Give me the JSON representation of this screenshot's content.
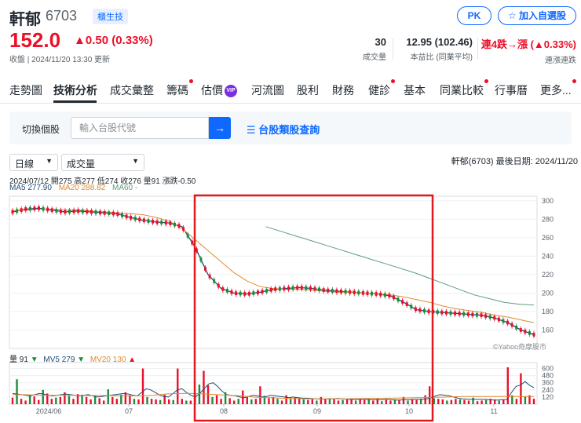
{
  "stock": {
    "name": "軒郁",
    "code": "6703",
    "tag": "櫃生技",
    "price": "152.0",
    "change": "▲0.50 (0.33%)",
    "update": "收盤 | 2024/11/20 13:30 更新"
  },
  "buttons": {
    "pk": "PK",
    "follow": "☆ 加入自選股"
  },
  "stats": [
    {
      "value": "30",
      "label": "成交量"
    },
    {
      "value": "12.95 (102.46)",
      "label": "本益比 (同業平均)"
    },
    {
      "value": "連4跌→漲 (▲0.33%)",
      "label": "連漲連跌"
    }
  ],
  "tabs": [
    {
      "label": "走勢圖"
    },
    {
      "label": "技術分析"
    },
    {
      "label": "成交彙整"
    },
    {
      "label": "籌碼"
    },
    {
      "label": "估價"
    },
    {
      "label": "河流圖"
    },
    {
      "label": "股利"
    },
    {
      "label": "財務"
    },
    {
      "label": "健診"
    },
    {
      "label": "基本"
    },
    {
      "label": "同業比較"
    },
    {
      "label": "行事曆"
    },
    {
      "label": "更多..."
    }
  ],
  "search": {
    "label": "切換個股",
    "placeholder": "輸入台股代號",
    "category_link": "☰ 台股類股查詢"
  },
  "selects": {
    "period": "日線",
    "indicator": "成交量"
  },
  "chart_meta": "軒郁(6703)   最後日期: 2024/11/20",
  "info_line": "2024/07/12 開275 高277 低274 收276 量91 漲跌-0.50",
  "ma": {
    "ma5": "MA5 277.90",
    "ma20": "MA20 288.82",
    "ma60": "MA60 -"
  },
  "volume_head": {
    "vol": "量 91",
    "mv5": "MV5 279",
    "mv20": "MV20 130"
  },
  "watermark": "©Yahoo奇摩股市",
  "colors": {
    "up": "#eb0f29",
    "down": "#1c8c3c",
    "accent": "#0f69ff",
    "ma5": "#1f4e79",
    "ma20": "#e08a2e",
    "ma60": "#5e9c7a",
    "highlight": "#e0191f"
  },
  "chart_data": [
    {
      "type": "line",
      "title": "",
      "ylim": [
        140,
        305
      ],
      "y_ticks": [
        300,
        280,
        260,
        240,
        220,
        200,
        180,
        160
      ],
      "x_ticks": [
        "2024/06",
        "07",
        "08",
        "09",
        "10",
        "11"
      ],
      "series": [
        {
          "name": "MA5",
          "values": [
            288,
            291,
            292,
            290,
            288,
            289,
            288,
            287,
            286,
            282,
            279,
            277,
            276,
            272,
            250,
            220,
            205,
            200,
            199,
            201,
            204,
            205,
            206,
            205,
            203,
            202,
            201,
            200,
            199,
            197,
            190,
            182,
            180,
            179,
            178,
            177,
            176,
            173,
            168,
            160,
            155
          ]
        },
        {
          "name": "MA20",
          "values": [
            289,
            290,
            291,
            291,
            290,
            290,
            289,
            288,
            287,
            286,
            285,
            282,
            278,
            270,
            258,
            246,
            234,
            222,
            213,
            207,
            205,
            204,
            204,
            203,
            202,
            201,
            201,
            200,
            199,
            198,
            196,
            193,
            190,
            186,
            183,
            181,
            179,
            176,
            174,
            171,
            168
          ]
        },
        {
          "name": "MA60",
          "values": [
            null,
            null,
            null,
            null,
            null,
            null,
            null,
            null,
            null,
            null,
            null,
            null,
            null,
            null,
            null,
            null,
            null,
            272,
            267,
            262,
            257,
            252,
            247,
            242,
            237,
            232,
            227,
            222,
            216,
            210,
            204,
            198,
            194,
            190,
            188,
            187
          ]
        }
      ]
    },
    {
      "type": "bar",
      "title": "",
      "ylim": [
        0,
        700
      ],
      "y_ticks": [
        600,
        480,
        360,
        240,
        120
      ],
      "values": [
        110,
        420,
        90,
        60,
        150,
        130,
        70,
        240,
        180,
        90,
        110,
        120,
        200,
        140,
        90,
        170,
        160,
        120,
        80,
        140,
        100,
        60,
        250,
        120,
        90,
        160,
        200,
        150,
        90,
        80,
        600,
        120,
        90,
        80,
        70,
        160,
        80,
        70,
        600,
        90,
        60,
        60,
        180,
        330,
        560,
        320,
        120,
        150,
        90,
        200,
        100,
        60,
        90,
        230,
        120,
        80,
        90,
        300,
        140,
        100,
        120,
        90,
        60,
        150,
        90,
        110,
        90,
        80,
        70,
        90,
        60,
        120,
        80,
        100,
        90,
        60,
        70,
        90,
        80,
        60,
        90,
        70,
        80,
        60,
        90,
        50,
        70,
        60,
        80,
        70,
        120,
        60,
        80,
        70,
        90,
        150,
        300,
        100,
        90,
        80,
        60,
        70,
        90,
        80,
        70,
        60,
        110,
        50,
        60,
        70,
        90,
        80,
        60,
        70,
        620,
        150,
        90,
        520,
        130,
        150,
        91
      ],
      "mv5": [
        180,
        170,
        160,
        150,
        140,
        160,
        180,
        170,
        150,
        140,
        150,
        160,
        170,
        160,
        150,
        140,
        150,
        160,
        140,
        120,
        130,
        140,
        150,
        160,
        170,
        180,
        170,
        150,
        140,
        200,
        260,
        240,
        200,
        150,
        130,
        120,
        180,
        240,
        260,
        200,
        150,
        120,
        180,
        260,
        340,
        360,
        300,
        220,
        160,
        150,
        140,
        120,
        110,
        130,
        150,
        140,
        120,
        130,
        150,
        140,
        130,
        120,
        110,
        120,
        110,
        100,
        100,
        95,
        90,
        90,
        85,
        90,
        90,
        95,
        90,
        85,
        80,
        80,
        80,
        80,
        80,
        75,
        75,
        75,
        80,
        75,
        70,
        70,
        75,
        75,
        80,
        80,
        85,
        90,
        110,
        140,
        160,
        150,
        140,
        120,
        100,
        90,
        85,
        80,
        80,
        80,
        80,
        75,
        70,
        70,
        75,
        80,
        200,
        300,
        320,
        380,
        320,
        279
      ],
      "mv20": [
        160,
        160,
        160,
        155,
        155,
        150,
        150,
        150,
        150,
        150,
        150,
        148,
        146,
        145,
        145,
        145,
        145,
        145,
        142,
        140,
        140,
        140,
        142,
        145,
        150,
        160,
        170,
        175,
        178,
        180,
        182,
        180,
        175,
        170,
        165,
        160,
        155,
        150,
        145,
        140,
        130,
        120,
        115,
        110,
        108,
        105,
        100,
        98,
        95,
        92,
        90,
        90,
        90,
        90,
        88,
        88,
        90,
        90,
        92,
        92,
        95,
        95,
        98,
        98,
        100,
        100,
        102,
        104,
        106,
        108,
        110,
        112,
        115,
        118,
        120,
        122,
        125,
        128,
        130,
        130,
        130,
        130,
        130,
        130,
        130,
        130,
        130,
        130,
        130,
        130
      ]
    }
  ]
}
